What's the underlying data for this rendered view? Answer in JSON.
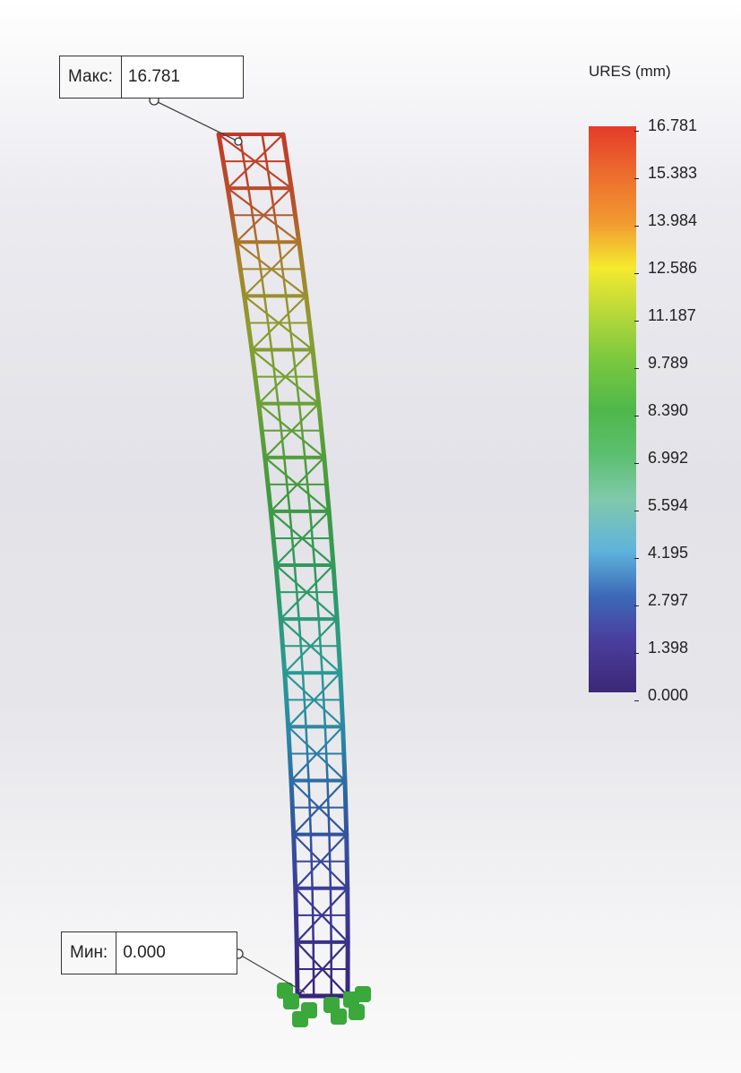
{
  "max_callout": {
    "label": "Макс:",
    "value": "16.781"
  },
  "min_callout": {
    "label": "Мин:",
    "value": "0.000"
  },
  "legend": {
    "title": "URES (mm)",
    "ticks": [
      "16.781",
      "15.383",
      "13.984",
      "12.586",
      "11.187",
      "9.789",
      "8.390",
      "6.992",
      "5.594",
      "4.195",
      "2.797",
      "1.398",
      "0.000"
    ],
    "colors": {
      "max": "#e33b2a",
      "orange": "#f29a30",
      "yellow": "#f4ea2e",
      "green": "#4fb84a",
      "cyan": "#5fb3dc",
      "blue": "#3c69b8",
      "min": "#3c2877",
      "fixture": "#3aa83a"
    }
  }
}
